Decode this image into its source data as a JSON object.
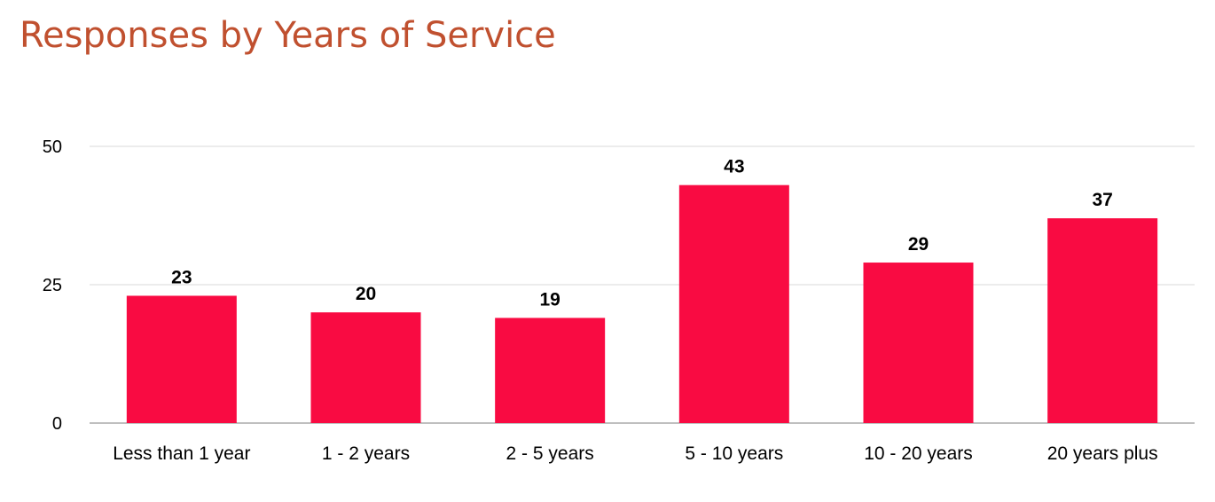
{
  "page": {
    "title": "Responses by Years of Service"
  },
  "chart_data": {
    "type": "bar",
    "title": "Responses by Years of Service",
    "xlabel": "",
    "ylabel": "",
    "categories": [
      "Less than 1 year",
      "1 - 2 years",
      "2 - 5 years",
      "5 - 10 years",
      "10 - 20 years",
      "20 years plus"
    ],
    "values": [
      23,
      20,
      19,
      43,
      29,
      37
    ],
    "data_labels": [
      "23",
      "20",
      "19",
      "43",
      "29",
      "37"
    ],
    "ylim": [
      0,
      50
    ],
    "yticks": [
      0,
      25,
      50
    ],
    "ytick_labels": [
      "0",
      "25",
      "50"
    ],
    "grid": true,
    "legend": "none",
    "colors": {
      "bar": "#f90b42",
      "grid": "#d9d9d9",
      "axis": "#aaaaaa",
      "title": "#c0502f"
    }
  }
}
